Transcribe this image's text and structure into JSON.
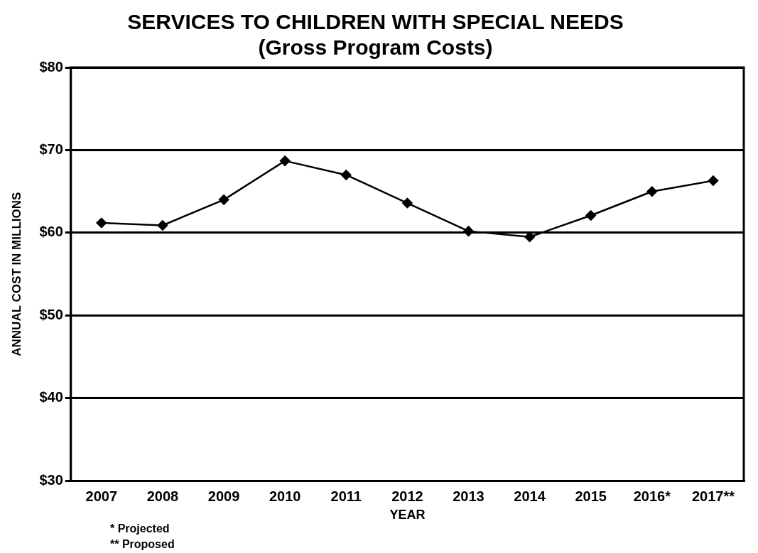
{
  "chart_data": {
    "type": "line",
    "title": "SERVICES TO CHILDREN WITH SPECIAL NEEDS",
    "subtitle": "(Gross Program Costs)",
    "xlabel": "YEAR",
    "ylabel": "ANNUAL COST IN MILLIONS",
    "categories": [
      "2007",
      "2008",
      "2009",
      "2010",
      "2011",
      "2012",
      "2013",
      "2014",
      "2015",
      "2016*",
      "2017**"
    ],
    "series": [
      {
        "color": "#000000",
        "values": [
          61.2,
          60.9,
          64.0,
          68.7,
          67.0,
          63.6,
          60.2,
          59.5,
          62.1,
          65.0,
          66.3
        ]
      }
    ],
    "ylim": [
      30,
      80
    ],
    "yticks": [
      {
        "value": 30,
        "label": "$30"
      },
      {
        "value": 40,
        "label": "$40"
      },
      {
        "value": 50,
        "label": "$50"
      },
      {
        "value": 60,
        "label": "$60"
      },
      {
        "value": 70,
        "label": "$70"
      },
      {
        "value": 80,
        "label": "$80"
      }
    ],
    "grid": "y",
    "legend": false,
    "marker": "diamond",
    "line_style": "solid",
    "annotations": [
      "* Projected",
      "** Proposed"
    ]
  }
}
